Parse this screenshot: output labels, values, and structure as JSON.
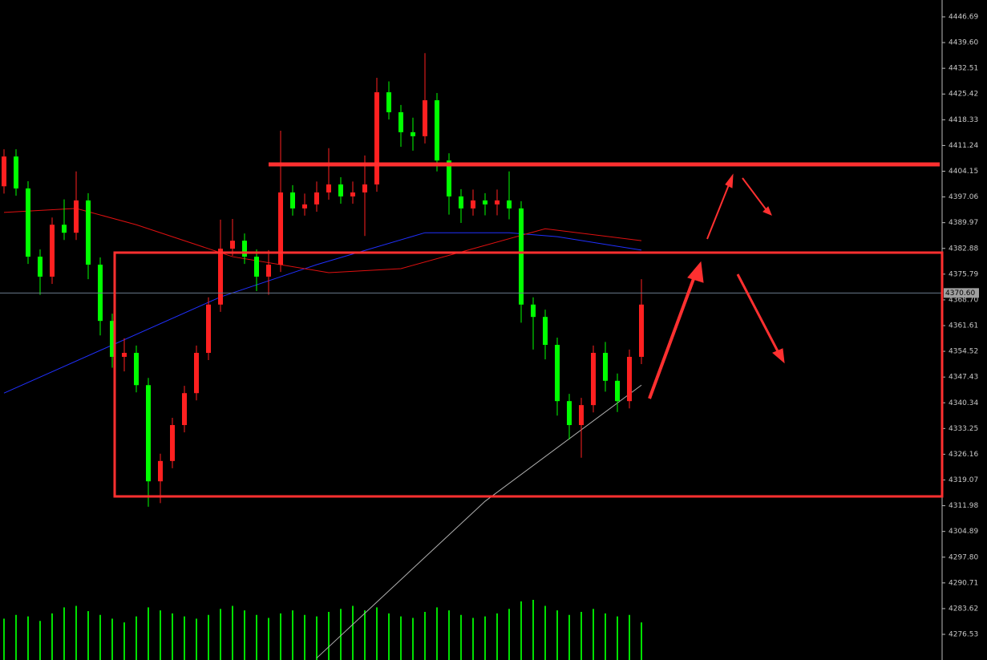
{
  "chart_data": {
    "type": "candlestick",
    "ylim": [
      4269.46,
      4451.33
    ],
    "yticks": [
      4446.69,
      {
        "value": 4439.6,
        "label": "4439.60"
      },
      4432.51,
      4425.42,
      4418.33,
      4411.24,
      4404.15,
      4397.06,
      4389.97,
      4382.88,
      4375.79,
      {
        "value": 4368.7,
        "label": "4368.70"
      },
      4361.61,
      4354.52,
      4347.43,
      4340.34,
      4333.25,
      4326.16,
      4319.07,
      4311.98,
      4304.89,
      {
        "value": 4297.8,
        "label": "4297.80"
      },
      4290.71,
      4283.62,
      4276.53
    ],
    "current_price": {
      "value": 4370.6,
      "label": "4370.60"
    },
    "up_color": "#ff2020",
    "down_color": "#00ff00",
    "open": [
      4400.0,
      4408.2,
      4399.4,
      4380.6,
      4375.1,
      4389.4,
      4387.2,
      4396.1,
      4378.4,
      4362.9,
      4353.0,
      4354.1,
      4345.2,
      4318.7,
      4324.3,
      4334.2,
      4343.0,
      4354.1,
      4367.4,
      4382.8,
      4385.0,
      4380.6,
      4375.1,
      4378.4,
      4398.3,
      4393.9,
      4395.0,
      4398.3,
      4400.5,
      4397.2,
      4398.3,
      4400.5,
      4425.9,
      4420.4,
      4414.9,
      4413.8,
      4423.7,
      4407.1,
      4397.2,
      4393.9,
      4396.1,
      4395.0,
      4396.1,
      4393.9,
      4367.4,
      4364.0,
      4356.3,
      4340.8,
      4334.2,
      4339.7,
      4354.1,
      4346.4,
      4340.8,
      4353.0
    ],
    "close": [
      4408.2,
      4399.4,
      4380.6,
      4375.1,
      4389.4,
      4387.2,
      4396.1,
      4378.4,
      4362.9,
      4353.0,
      4354.1,
      4345.2,
      4318.7,
      4324.3,
      4334.2,
      4343.0,
      4354.1,
      4367.4,
      4382.8,
      4385.0,
      4380.6,
      4375.1,
      4378.4,
      4398.3,
      4393.9,
      4395.0,
      4398.3,
      4400.5,
      4397.2,
      4398.3,
      4400.5,
      4425.9,
      4420.4,
      4414.9,
      4413.8,
      4423.7,
      4407.1,
      4397.2,
      4393.9,
      4396.1,
      4395.0,
      4396.1,
      4393.9,
      4367.4,
      4364.0,
      4356.3,
      4340.8,
      4334.2,
      4339.7,
      4354.1,
      4346.4,
      4340.8,
      4353.0,
      4367.4
    ],
    "high": [
      4410.2,
      4410.2,
      4401.4,
      4382.6,
      4391.4,
      4396.4,
      4404.1,
      4398.1,
      4380.4,
      4364.9,
      4358.1,
      4356.1,
      4347.2,
      4326.3,
      4336.2,
      4345.0,
      4356.1,
      4369.4,
      4390.8,
      4391.0,
      4387.0,
      4382.6,
      4382.4,
      4415.3,
      4400.3,
      4398.0,
      4401.3,
      4410.5,
      4402.5,
      4401.3,
      4408.5,
      4429.9,
      4428.9,
      4422.4,
      4418.9,
      4436.7,
      4425.7,
      4409.1,
      4399.2,
      4399.1,
      4398.1,
      4399.1,
      4404.1,
      4395.9,
      4369.4,
      4366.0,
      4358.3,
      4342.8,
      4341.7,
      4356.1,
      4357.1,
      4348.4,
      4355.0,
      4374.4
    ],
    "low": [
      4398.0,
      4397.4,
      4378.6,
      4370.1,
      4373.1,
      4385.2,
      4385.2,
      4374.4,
      4358.9,
      4350.0,
      4349.0,
      4343.2,
      4311.7,
      4312.7,
      4322.3,
      4332.2,
      4341.0,
      4352.1,
      4365.4,
      4380.8,
      4378.6,
      4371.1,
      4370.1,
      4376.4,
      4391.9,
      4391.9,
      4393.0,
      4396.3,
      4395.2,
      4395.2,
      4386.3,
      4398.5,
      4418.4,
      4410.9,
      4409.8,
      4411.8,
      4404.1,
      4392.2,
      4389.9,
      4391.9,
      4392.0,
      4392.0,
      4390.9,
      4362.4,
      4355.0,
      4352.3,
      4336.8,
      4330.2,
      4325.2,
      4337.7,
      4343.4,
      4337.8,
      4338.8,
      4351.0
    ],
    "volume": [
      55,
      60,
      58,
      52,
      62,
      70,
      72,
      65,
      60,
      55,
      50,
      58,
      70,
      66,
      62,
      58,
      55,
      60,
      68,
      72,
      66,
      60,
      56,
      62,
      66,
      60,
      58,
      64,
      68,
      72,
      66,
      70,
      62,
      58,
      56,
      64,
      70,
      66,
      60,
      56,
      58,
      62,
      68,
      78,
      80,
      72,
      66,
      60,
      64,
      68,
      62,
      58,
      60,
      50
    ],
    "volume_color": "#00e000",
    "lines": [
      {
        "color": "#2030ff",
        "x": [
          0,
          18,
          26,
          35,
          42,
          46,
          53
        ],
        "values": [
          4343.0,
          4369.5,
          4378.4,
          4387.2,
          4387.2,
          4386.1,
          4382.4
        ]
      },
      {
        "color": "#e01010",
        "x": [
          0,
          6,
          11,
          19,
          27,
          33,
          39,
          45,
          53
        ],
        "values": [
          4392.8,
          4393.9,
          4389.4,
          4380.6,
          4376.2,
          4377.3,
          4382.8,
          4388.3,
          4385.0
        ]
      },
      {
        "color": "#b0b0b0",
        "x": [
          26,
          40,
          53
        ],
        "values": [
          4270.0,
          4313.2,
          4345.2
        ]
      }
    ]
  }
}
